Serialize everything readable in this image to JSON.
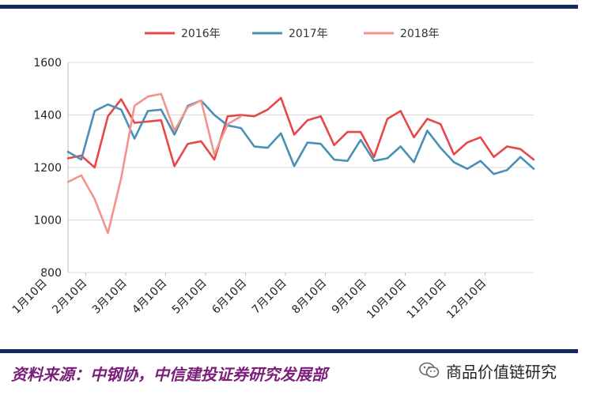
{
  "chart_data": {
    "type": "line",
    "title": "",
    "xlabel": "",
    "ylabel": "",
    "ylim": [
      800,
      1600
    ],
    "yticks": [
      800,
      1000,
      1200,
      1400,
      1600
    ],
    "x_tick_labels": [
      "1月10日",
      "2月10日",
      "3月10日",
      "4月10日",
      "5月10日",
      "6月10日",
      "7月10日",
      "8月10日",
      "9月10日",
      "10月10日",
      "11月10日",
      "12月10日"
    ],
    "grid": true,
    "legend_position": "top",
    "series": [
      {
        "name": "2016年",
        "color": "#e8464a",
        "values": [
          1235,
          1245,
          1200,
          1395,
          1460,
          1370,
          1375,
          1380,
          1205,
          1290,
          1300,
          1230,
          1395,
          1400,
          1395,
          1420,
          1465,
          1325,
          1380,
          1395,
          1285,
          1335,
          1335,
          1240,
          1385,
          1415,
          1315,
          1385,
          1365,
          1250,
          1295,
          1315,
          1240,
          1280,
          1270,
          1230
        ]
      },
      {
        "name": "2017年",
        "color": "#4a8fb5",
        "values": [
          1260,
          1230,
          1415,
          1440,
          1420,
          1310,
          1415,
          1420,
          1325,
          1435,
          1455,
          1400,
          1360,
          1350,
          1280,
          1275,
          1330,
          1205,
          1295,
          1290,
          1230,
          1225,
          1305,
          1225,
          1235,
          1280,
          1220,
          1340,
          1275,
          1220,
          1195,
          1225,
          1175,
          1190,
          1240,
          1195
        ]
      },
      {
        "name": "2018年",
        "color": "#f4938c",
        "values": [
          1145,
          1170,
          1080,
          950,
          1160,
          1435,
          1470,
          1480,
          1340,
          1430,
          1455,
          1250,
          1365,
          1395
        ]
      }
    ]
  },
  "footer": {
    "source": "资料来源：中钢协，中信建投证券研究发展部",
    "brand": "商品价值链研究"
  }
}
